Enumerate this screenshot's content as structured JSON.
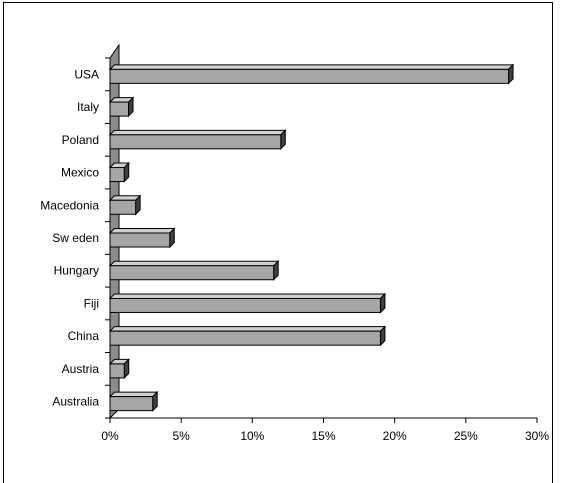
{
  "chart_data": {
    "type": "bar",
    "orientation": "horizontal",
    "style": "3d",
    "categories": [
      "USA",
      "Italy",
      "Poland",
      "Mexico",
      "Macedonia",
      "Sw eden",
      "Hungary",
      "Fiji",
      "China",
      "Austria",
      "Australia"
    ],
    "values": [
      28,
      1.3,
      12,
      1,
      1.8,
      4.2,
      11.5,
      19,
      19,
      1,
      3
    ],
    "xlim": [
      0,
      30
    ],
    "xticks": [
      "0%",
      "5%",
      "10%",
      "15%",
      "20%",
      "25%",
      "30%"
    ],
    "title": "",
    "xlabel": "",
    "ylabel": "",
    "grid": false,
    "legend": false,
    "colors": {
      "bar_face": "#a6a6a6",
      "bar_top": "#d0d0d0",
      "bar_side": "#404040",
      "wall": "#8c8c8c"
    }
  }
}
